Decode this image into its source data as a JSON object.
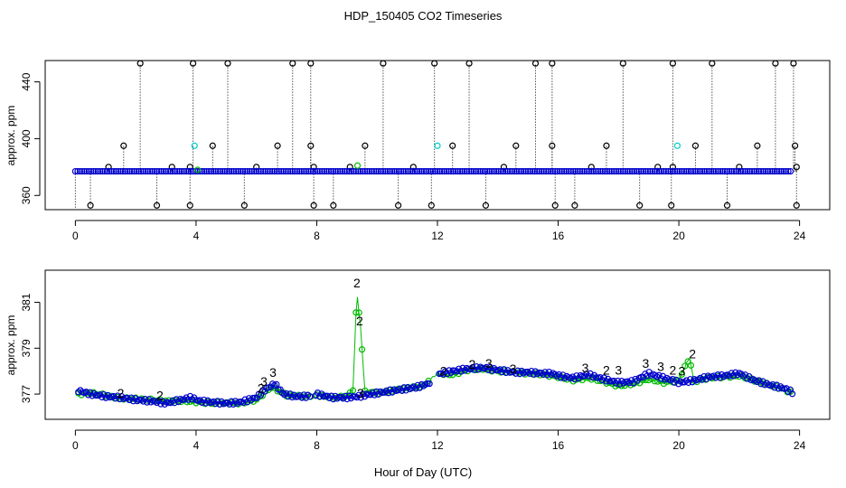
{
  "title": "HDP_150405  CO2 Timeseries",
  "xlabel": "Hour of Day (UTC)",
  "colors": {
    "axis": "#000000",
    "raw": "#000000",
    "blue": "#0000cc",
    "cyan": "#00cccc",
    "green": "#00bb00",
    "label_3": "#0000cc",
    "label_2": "#00bb00"
  },
  "chart_data": [
    {
      "type": "scatter",
      "panel": "top",
      "title": "HDP_150405  CO2 Timeseries",
      "xlabel": "",
      "ylabel": "approx. ppm",
      "xlim": [
        -1,
        25
      ],
      "ylim": [
        350,
        455
      ],
      "xticks": [
        0,
        4,
        8,
        12,
        16,
        20,
        24
      ],
      "yticks": [
        360,
        400,
        440
      ],
      "baseline": 377,
      "high_spikes_x": [
        2.15,
        3.9,
        5.05,
        7.2,
        7.8,
        10.2,
        11.9,
        13.05,
        15.25,
        15.8,
        18.15,
        19.8,
        21.1,
        23.2,
        23.8
      ],
      "high_value": 453,
      "low_spikes_x": [
        0.5,
        2.7,
        3.8,
        5.6,
        7.9,
        8.55,
        10.7,
        11.8,
        13.6,
        15.9,
        16.55,
        18.7,
        19.75,
        21.6,
        23.9
      ],
      "low_value": 353,
      "mid_spikes_x": [
        1.6,
        4.55,
        6.7,
        7.8,
        9.6,
        12.5,
        14.6,
        15.8,
        17.6,
        20.55,
        22.6,
        23.85
      ],
      "mid_value": 395,
      "small_spikes_x": [
        1.1,
        3.2,
        3.8,
        6.0,
        7.9,
        9.1,
        11.2,
        14.2,
        17.1,
        19.3,
        19.8,
        22.0,
        23.9
      ],
      "small_value": 380,
      "cyan_points": [
        {
          "x": 3.95,
          "y": 395
        },
        {
          "x": 12.0,
          "y": 395
        },
        {
          "x": 19.95,
          "y": 395
        }
      ],
      "green_points": [
        {
          "x": 9.35,
          "y": 381
        },
        {
          "x": 4.05,
          "y": 378
        }
      ]
    },
    {
      "type": "scatter",
      "panel": "bottom",
      "xlabel": "Hour of Day (UTC)",
      "ylabel": "approx. ppm",
      "xlim": [
        -1,
        25
      ],
      "ylim": [
        375.9,
        382.4
      ],
      "xticks": [
        0,
        4,
        8,
        12,
        16,
        20,
        24
      ],
      "yticks": [
        377,
        379,
        381
      ],
      "series": [
        {
          "name": "blue",
          "x": [
            0.1,
            0.5,
            1.0,
            1.5,
            2.0,
            2.5,
            3.0,
            3.5,
            3.85,
            4.1,
            4.5,
            5.0,
            5.5,
            6.0,
            6.3,
            6.6,
            6.9,
            7.3,
            7.7,
            8.0,
            8.5,
            9.0,
            9.4,
            9.8,
            10.3,
            10.8,
            11.3,
            11.7,
            12.0,
            12.5,
            13.0,
            13.5,
            14.0,
            14.5,
            15.0,
            15.5,
            15.8,
            16.0,
            16.5,
            17.0,
            17.5,
            18.0,
            18.5,
            19.0,
            19.5,
            19.8,
            20.0,
            20.5,
            21.0,
            21.5,
            22.0,
            22.5,
            23.0,
            23.5,
            23.8
          ],
          "y": [
            377.15,
            377.0,
            376.9,
            376.85,
            376.75,
            376.7,
            376.6,
            376.75,
            376.85,
            376.7,
            376.65,
            376.6,
            376.65,
            376.85,
            377.2,
            377.45,
            377.0,
            376.9,
            376.9,
            377.0,
            376.85,
            376.85,
            376.9,
            377.0,
            377.1,
            377.2,
            377.3,
            377.45,
            377.85,
            378.0,
            378.1,
            378.15,
            378.05,
            377.95,
            377.95,
            377.9,
            377.9,
            377.8,
            377.7,
            377.85,
            377.65,
            377.5,
            377.55,
            377.9,
            377.7,
            377.6,
            377.5,
            377.6,
            377.75,
            377.8,
            377.9,
            377.6,
            377.4,
            377.25,
            377.05
          ]
        },
        {
          "name": "green",
          "x": [
            0.1,
            0.5,
            1.0,
            1.5,
            2.0,
            2.5,
            3.0,
            3.5,
            4.1,
            4.5,
            5.0,
            5.5,
            6.0,
            6.5,
            7.0,
            7.5,
            8.0,
            8.5,
            9.0,
            9.2,
            9.33,
            9.45,
            9.6,
            10.0,
            10.5,
            11.0,
            11.5,
            12.0,
            12.5,
            13.0,
            13.5,
            14.0,
            14.5,
            15.0,
            15.5,
            16.0,
            16.5,
            17.0,
            17.5,
            18.0,
            18.5,
            19.0,
            19.5,
            20.0,
            20.35,
            20.5,
            21.0,
            21.5,
            22.0,
            22.5,
            23.0,
            23.5,
            23.8
          ],
          "y": [
            377.0,
            377.05,
            376.95,
            376.8,
            376.8,
            376.75,
            376.7,
            376.7,
            376.65,
            376.6,
            376.6,
            376.6,
            376.75,
            377.3,
            376.95,
            376.9,
            376.95,
            376.85,
            376.9,
            377.2,
            381.5,
            379.9,
            377.1,
            377.05,
            377.15,
            377.25,
            377.35,
            377.9,
            377.85,
            378.05,
            378.1,
            378.0,
            377.95,
            377.9,
            377.85,
            377.75,
            377.6,
            377.7,
            377.55,
            377.35,
            377.45,
            377.65,
            377.5,
            377.6,
            378.6,
            377.55,
            377.7,
            377.75,
            377.8,
            377.6,
            377.4,
            377.2,
            377.0
          ]
        }
      ],
      "labeled_points": [
        {
          "label": "3",
          "x": 6.55,
          "y": 377.95,
          "series": "blue"
        },
        {
          "label": "3",
          "x": 6.25,
          "y": 377.55,
          "series": "blue"
        },
        {
          "label": "3",
          "x": 9.45,
          "y": 377.05,
          "series": "blue"
        },
        {
          "label": "3",
          "x": 13.7,
          "y": 378.35,
          "series": "blue"
        },
        {
          "label": "3",
          "x": 16.9,
          "y": 378.15,
          "series": "blue"
        },
        {
          "label": "3",
          "x": 18.0,
          "y": 378.05,
          "series": "blue"
        },
        {
          "label": "3",
          "x": 18.9,
          "y": 378.35,
          "series": "blue"
        },
        {
          "label": "3",
          "x": 19.4,
          "y": 378.2,
          "series": "blue"
        },
        {
          "label": "3",
          "x": 20.1,
          "y": 378.0,
          "series": "blue"
        },
        {
          "label": "3",
          "x": 14.5,
          "y": 378.1,
          "series": "blue"
        },
        {
          "label": "2",
          "x": 9.33,
          "y": 381.85,
          "series": "green"
        },
        {
          "label": "2",
          "x": 9.42,
          "y": 380.2,
          "series": "green"
        },
        {
          "label": "2",
          "x": 13.15,
          "y": 378.3,
          "series": "green"
        },
        {
          "label": "2",
          "x": 20.45,
          "y": 378.75,
          "series": "green"
        },
        {
          "label": "2",
          "x": 1.5,
          "y": 377.05,
          "series": "green"
        },
        {
          "label": "2",
          "x": 2.8,
          "y": 376.95,
          "series": "green"
        },
        {
          "label": "2",
          "x": 17.6,
          "y": 378.05,
          "series": "green"
        },
        {
          "label": "2",
          "x": 19.8,
          "y": 378.05,
          "series": "green"
        },
        {
          "label": "2",
          "x": 6.15,
          "y": 377.25,
          "series": "green"
        },
        {
          "label": "2",
          "x": 12.2,
          "y": 378.0,
          "series": "green"
        }
      ]
    }
  ]
}
